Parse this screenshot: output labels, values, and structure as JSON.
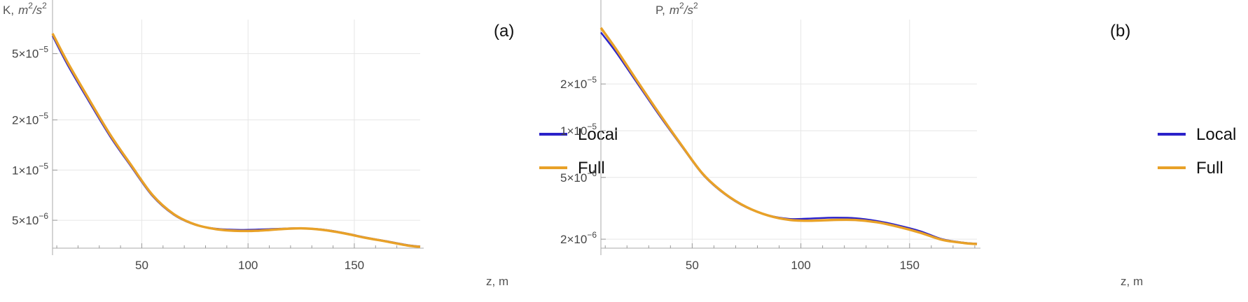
{
  "chart_data": [
    {
      "type": "line",
      "panel_tag": "(a)",
      "ylabel_prefix": "K,",
      "ylabel_unit_base": "m",
      "ylabel_unit_exp": "2",
      "ylabel_unit_div": "/s",
      "ylabel_unit_exp2": "2",
      "xlabel": "z, m",
      "y_scale": "log",
      "x_ticks": [
        50,
        100,
        150
      ],
      "y_ticks": [
        {
          "value": 5e-05,
          "mantissa": "5.",
          "base": "×10",
          "exp": "−5"
        },
        {
          "value": 2e-05,
          "mantissa": "2.",
          "base": "×10",
          "exp": "−5"
        },
        {
          "value": 1e-05,
          "mantissa": "1.",
          "base": "×10",
          "exp": "−5"
        },
        {
          "value": 5e-06,
          "mantissa": "5.",
          "base": "×10",
          "exp": "−6"
        }
      ],
      "xlim": [
        8,
        181
      ],
      "ylim": [
        3.4e-06,
        8e-05
      ],
      "grid": true,
      "legend_position": "right",
      "series": [
        {
          "name": "Local",
          "color": "#2b22c9",
          "x": [
            8,
            15,
            25,
            35,
            45,
            55,
            65,
            75,
            85,
            95,
            105,
            115,
            125,
            135,
            145,
            155,
            165,
            175,
            181
          ],
          "y": [
            6.4e-05,
            4.3e-05,
            2.6e-05,
            1.6e-05,
            1.05e-05,
            7e-06,
            5.4e-06,
            4.7e-06,
            4.45e-06,
            4.38e-06,
            4.4e-06,
            4.45e-06,
            4.48e-06,
            4.4e-06,
            4.2e-06,
            3.95e-06,
            3.75e-06,
            3.55e-06,
            3.48e-06
          ]
        },
        {
          "name": "Full",
          "color": "#e8a128",
          "x": [
            8,
            15,
            25,
            35,
            45,
            55,
            65,
            75,
            85,
            95,
            105,
            115,
            125,
            135,
            145,
            155,
            165,
            175,
            181
          ],
          "y": [
            6.6e-05,
            4.45e-05,
            2.68e-05,
            1.64e-05,
            1.07e-05,
            7.1e-06,
            5.45e-06,
            4.72e-06,
            4.42e-06,
            4.32e-06,
            4.33e-06,
            4.42e-06,
            4.47e-06,
            4.38e-06,
            4.18e-06,
            3.93e-06,
            3.73e-06,
            3.53e-06,
            3.46e-06
          ]
        }
      ]
    },
    {
      "type": "line",
      "panel_tag": "(b)",
      "ylabel_prefix": "P,",
      "ylabel_unit_base": "m",
      "ylabel_unit_exp": "2",
      "ylabel_unit_div": "/s",
      "ylabel_unit_exp2": "2",
      "xlabel": "z, m",
      "y_scale": "log",
      "x_ticks": [
        50,
        100,
        150
      ],
      "y_ticks": [
        {
          "value": 2e-05,
          "mantissa": "2.",
          "base": "×10",
          "exp": "−5"
        },
        {
          "value": 1e-05,
          "mantissa": "1.",
          "base": "×10",
          "exp": "−5"
        },
        {
          "value": 5e-06,
          "mantissa": "5.",
          "base": "×10",
          "exp": "−6"
        },
        {
          "value": 2e-06,
          "mantissa": "2.",
          "base": "×10",
          "exp": "−6"
        }
      ],
      "xlim": [
        8,
        181
      ],
      "ylim": [
        1.75e-06,
        5.2e-05
      ],
      "grid": true,
      "legend_position": "right",
      "series": [
        {
          "name": "Local",
          "color": "#2b22c9",
          "x": [
            8,
            15,
            25,
            35,
            45,
            55,
            65,
            75,
            85,
            95,
            105,
            115,
            125,
            135,
            145,
            155,
            165,
            175,
            181
          ],
          "y": [
            4.3e-05,
            3.2e-05,
            2e-05,
            1.25e-05,
            8e-06,
            5.2e-06,
            3.9e-06,
            3.2e-06,
            2.85e-06,
            2.7e-06,
            2.72e-06,
            2.75e-06,
            2.73e-06,
            2.62e-06,
            2.45e-06,
            2.25e-06,
            2e-06,
            1.9e-06,
            1.87e-06
          ]
        },
        {
          "name": "Full",
          "color": "#e8a128",
          "x": [
            8,
            15,
            25,
            35,
            45,
            55,
            65,
            75,
            85,
            95,
            105,
            115,
            125,
            135,
            145,
            155,
            165,
            175,
            181
          ],
          "y": [
            4.6e-05,
            3.35e-05,
            2.06e-05,
            1.28e-05,
            8.1e-06,
            5.25e-06,
            3.93e-06,
            3.22e-06,
            2.84e-06,
            2.66e-06,
            2.63e-06,
            2.66e-06,
            2.66e-06,
            2.57e-06,
            2.4e-06,
            2.2e-06,
            1.98e-06,
            1.89e-06,
            1.86e-06
          ]
        }
      ]
    }
  ]
}
